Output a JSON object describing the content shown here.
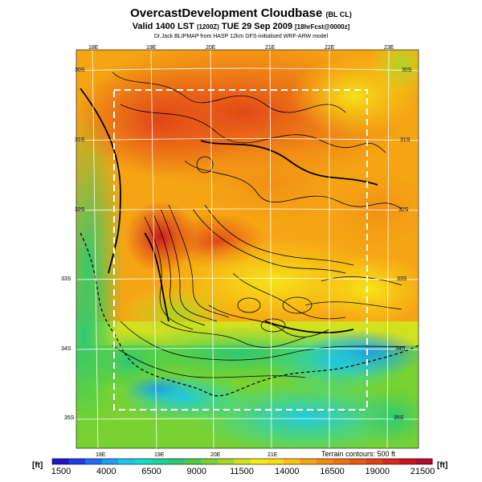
{
  "title": {
    "main": "OvercastDevelopment Cloudbase",
    "suffix": "(BL CL)",
    "line2": "Valid 1400 LST",
    "line2_utc": "(1200Z)",
    "line2_date": "TUE 29 Sep 2009",
    "line2_fcst": "[18hrFcst@0000z]",
    "line3": "Dr.Jack BLIPMAP from HASP 12km GFS-initialised WRF-ARW model"
  },
  "map": {
    "lon_labels_top": [
      "18E",
      "19E",
      "20E",
      "21E",
      "22E",
      "23E"
    ],
    "lon_labels_bottom": [
      "18E",
      "19E",
      "20E",
      "21E"
    ],
    "lat_labels_left": [
      "30S",
      "31S",
      "32S",
      "33S",
      "34S",
      "35S"
    ],
    "lat_labels_right": [
      "30S",
      "31S",
      "32S",
      "33S",
      "34S",
      "35S"
    ],
    "terrain_note": "Terrain contours: 500 ft"
  },
  "colorbar": {
    "unit": "[ft]",
    "labels": [
      "1500",
      "4000",
      "6500",
      "9000",
      "11500",
      "14000",
      "16500",
      "19000",
      "21500"
    ],
    "colors": [
      "#1e14c8",
      "#1f3ce6",
      "#1f6ef5",
      "#1fa0f5",
      "#1cc8e6",
      "#19dcc8",
      "#1ed2a0",
      "#2ac878",
      "#4bcd4b",
      "#78d232",
      "#a5d728",
      "#d2e11e",
      "#f5eb19",
      "#fadc14",
      "#fac314",
      "#f5a514",
      "#f08c14",
      "#eb7314",
      "#e65a14",
      "#e14119",
      "#d7281e",
      "#c81423",
      "#b40a28"
    ],
    "accent": "#f5a514"
  }
}
